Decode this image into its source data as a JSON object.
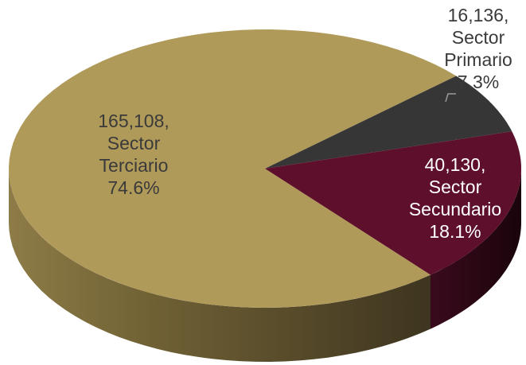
{
  "chart_data": {
    "type": "pie",
    "style": "3d-tilted",
    "title": "",
    "slices": [
      {
        "name": "Sector Terciario",
        "value": 165108,
        "percent": 74.6,
        "value_label": "165,108,",
        "name_lines": [
          "Sector",
          "Terciario"
        ],
        "percent_label": "74.6%",
        "color": "#B09A5A",
        "side_color": "#7E6D3C",
        "label_color": "#3a3a3a"
      },
      {
        "name": "Sector Primario",
        "value": 16136,
        "percent": 7.3,
        "value_label": "16,136,",
        "name_lines": [
          "Sector",
          "Primario"
        ],
        "percent_label": "7.3%",
        "color": "#363636",
        "side_color": "#1c1c1c",
        "label_color": "#3a3a3a"
      },
      {
        "name": "Sector Secundario",
        "value": 40130,
        "percent": 18.1,
        "value_label": "40,130,",
        "name_lines": [
          "Sector",
          "Secundario"
        ],
        "percent_label": "18.1%",
        "color": "#5E0F2C",
        "side_color": "#2F0716",
        "label_color": "#ffffff"
      }
    ],
    "legend": "none",
    "labels": "data-labels-with-category-and-percent"
  }
}
